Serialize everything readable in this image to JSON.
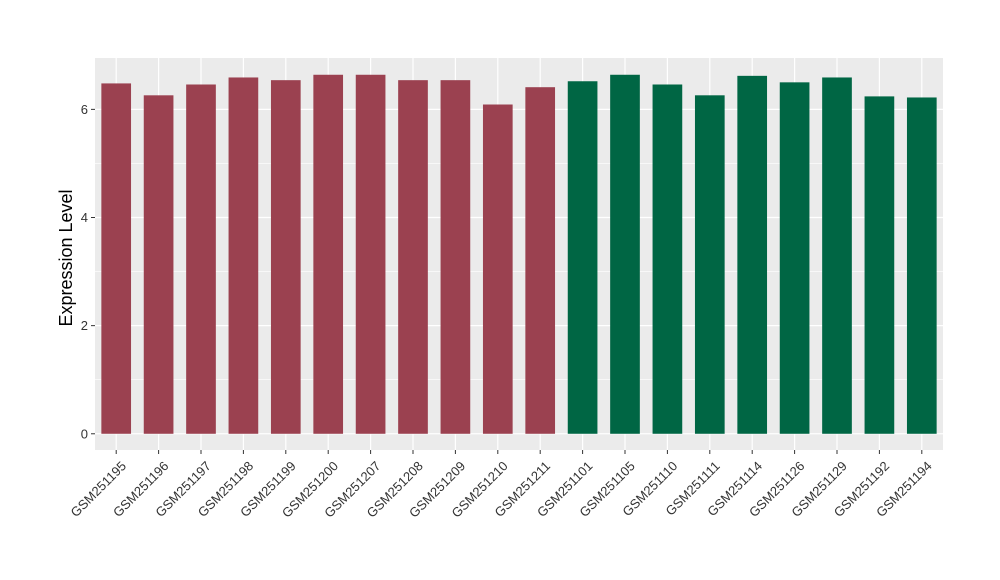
{
  "chart_data": {
    "type": "bar",
    "ylabel": "Expression Level",
    "xlabel": "",
    "ylim": [
      -0.3,
      6.95
    ],
    "yticks": [
      0,
      2,
      4,
      6
    ],
    "grid": true,
    "panel_color": "#ebebeb",
    "categories": [
      "GSM251195",
      "GSM251196",
      "GSM251197",
      "GSM251198",
      "GSM251199",
      "GSM251200",
      "GSM251207",
      "GSM251208",
      "GSM251209",
      "GSM251210",
      "GSM251211",
      "GSM251101",
      "GSM251105",
      "GSM251110",
      "GSM251111",
      "GSM251114",
      "GSM251126",
      "GSM251129",
      "GSM251192",
      "GSM251194"
    ],
    "values": [
      6.48,
      6.26,
      6.46,
      6.59,
      6.54,
      6.64,
      6.64,
      6.54,
      6.54,
      6.09,
      6.41,
      6.52,
      6.64,
      6.46,
      6.26,
      6.62,
      6.5,
      6.59,
      6.24,
      6.22
    ],
    "colors": [
      "#9b4150",
      "#9b4150",
      "#9b4150",
      "#9b4150",
      "#9b4150",
      "#9b4150",
      "#9b4150",
      "#9b4150",
      "#9b4150",
      "#9b4150",
      "#9b4150",
      "#006644",
      "#006644",
      "#006644",
      "#006644",
      "#006644",
      "#006644",
      "#006644",
      "#006644",
      "#006644"
    ]
  }
}
